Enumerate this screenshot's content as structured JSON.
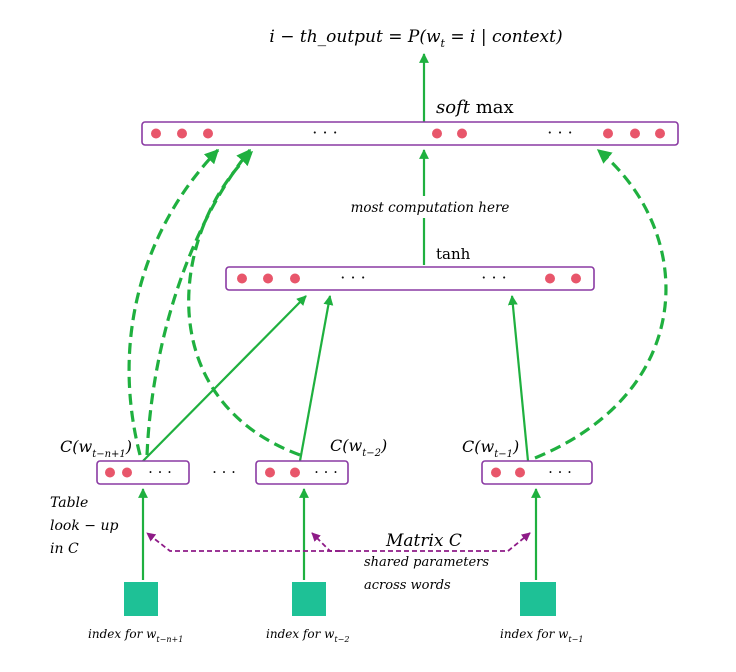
{
  "output": {
    "label_prefix": "i − th_output = P(w",
    "label_sub": "t",
    "label_suffix": " = i | context)"
  },
  "softmax": {
    "italic": "soft",
    "normal": " max"
  },
  "middle_note": "most computation here",
  "hidden": {
    "label": "tanh"
  },
  "embeddings": [
    {
      "prefix": "C(w",
      "sub": "t−n+1",
      "suffix": ")"
    },
    {
      "prefix": "C(w",
      "sub": "t−2",
      "suffix": ")"
    },
    {
      "prefix": "C(w",
      "sub": "t−1",
      "suffix": ")"
    }
  ],
  "table_lookup": [
    "Table",
    "look − up",
    "in C"
  ],
  "matrix": {
    "title": "Matrix C",
    "note_lines": [
      "shared parameters",
      "across words"
    ]
  },
  "indexes": [
    {
      "prefix": "index for w",
      "sub": "t−n+1"
    },
    {
      "prefix": "index for w",
      "sub": "t−2"
    },
    {
      "prefix": "index for w",
      "sub": "t−1"
    }
  ],
  "ellipsis": "· · ·",
  "colors": {
    "arrow": "#1fb03f",
    "box_border": "#8a3aa3",
    "unit": "#e8566b",
    "index_square": "#1ec196",
    "matrix_link": "#8e1b87"
  }
}
